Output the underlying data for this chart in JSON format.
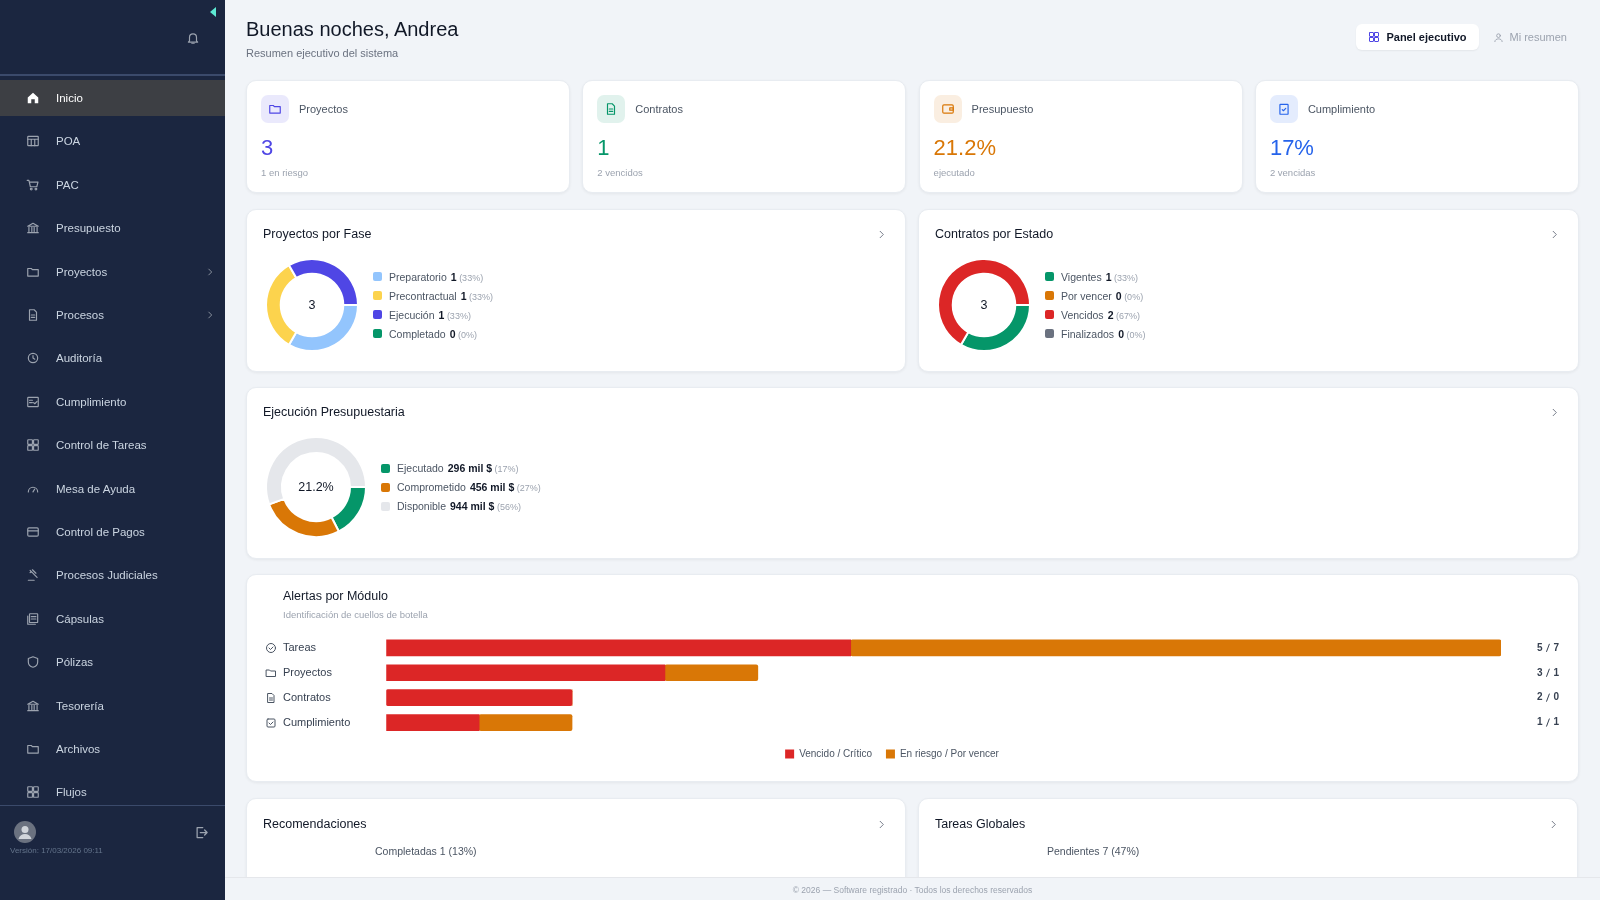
{
  "chart_data": [
    {
      "type": "other",
      "title": "Buenas noches, Andrea",
      "subtitle": "Resumen ejecutivo del sistema",
      "annotations": [
        "Panel ejecutivo",
        "Mi resumen"
      ]
    },
    {
      "type": "other",
      "annotations": [
        "Inicio",
        "POA",
        "PAC",
        "Presupuesto",
        "Proyectos",
        "Procesos",
        "Auditoría",
        "Cumplimiento",
        "Control de Tareas",
        "Mesa de Ayuda",
        "Control de Pagos",
        "Procesos Judiciales",
        "Cápsulas",
        "Pólizas",
        "Tesorería",
        "Archivos",
        "Flujos",
        "Versión: 17/03/2026 09:11"
      ]
    },
    {
      "type": "other",
      "title": "Proyectos",
      "annotations": [
        "3",
        "1 en riesgo"
      ],
      "color": "#4f46e5"
    },
    {
      "type": "other",
      "title": "Contratos",
      "annotations": [
        "1",
        "2 vencidos"
      ],
      "color": "#059669"
    },
    {
      "type": "other",
      "title": "Presupuesto",
      "annotations": [
        "21.2%",
        "ejecutado"
      ],
      "color": "#d97706"
    },
    {
      "type": "other",
      "title": "Cumplimiento",
      "annotations": [
        "17%",
        "2 vencidas"
      ],
      "color": "#2563eb"
    },
    {
      "type": "donut",
      "title": "Proyectos por Fase",
      "categories": [
        "Preparatorio",
        "Precontractual",
        "Ejecución",
        "Completado"
      ],
      "values": [
        1,
        1,
        1,
        0
      ],
      "colors": [
        "#93c5fd",
        "#fcd34d",
        "#4f46e5",
        "#059669"
      ],
      "value_labels": [
        "1 (33%)",
        "1 (33%)",
        "1 (33%)",
        "0 (0%)"
      ],
      "annotations": [
        "3"
      ],
      "legend": "right"
    },
    {
      "type": "donut",
      "title": "Contratos por Estado",
      "categories": [
        "Vigentes",
        "Por vencer",
        "Vencidos",
        "Finalizados"
      ],
      "values": [
        1,
        0,
        2,
        0
      ],
      "colors": [
        "#059669",
        "#d97706",
        "#dc2626",
        "#6b7280"
      ],
      "value_labels": [
        "1 (33%)",
        "0 (0%)",
        "2 (67%)",
        "0 (0%)"
      ],
      "annotations": [
        "3"
      ],
      "legend": "right"
    },
    {
      "type": "donut",
      "title": "Ejecución Presupuestaria",
      "categories": [
        "Ejecutado",
        "Comprometido",
        "Disponible"
      ],
      "values": [
        296,
        456,
        944
      ],
      "colors": [
        "#059669",
        "#d97706",
        "#e5e7eb"
      ],
      "value_labels": [
        "296 mil $ (17%)",
        "456 mil $ (27%)",
        "944 mil $ (56%)"
      ],
      "annotations": [
        "21.2%"
      ],
      "legend": "right"
    },
    {
      "type": "bar",
      "title": "Alertas por Módulo",
      "subtitle": "Identificación de cuellos de botella",
      "orientation": "horizontal",
      "stacked": true,
      "categories": [
        "Tareas",
        "Proyectos",
        "Contratos",
        "Cumplimiento"
      ],
      "series": [
        {
          "name": "Vencido / Crítico",
          "color": "#dc2626",
          "values": [
            5,
            3,
            2,
            1
          ],
          "value_labels": [
            "5",
            "3",
            "2",
            "1"
          ]
        },
        {
          "name": "En riesgo / Por vencer",
          "color": "#d97706",
          "values": [
            7,
            1,
            0,
            1
          ],
          "value_labels": [
            "7",
            "1",
            "0",
            "1"
          ]
        }
      ],
      "legend": "bottom"
    },
    {
      "type": "other",
      "title": "Recomendaciones",
      "annotations": [
        "Completadas 1 (13%)"
      ]
    },
    {
      "type": "other",
      "title": "Tareas Globales",
      "annotations": [
        "Pendientes 7 (47%)"
      ]
    },
    {
      "type": "other",
      "annotations": [
        "© 2026 — Software registrado · Todos los derechos reservados"
      ]
    }
  ]
}
